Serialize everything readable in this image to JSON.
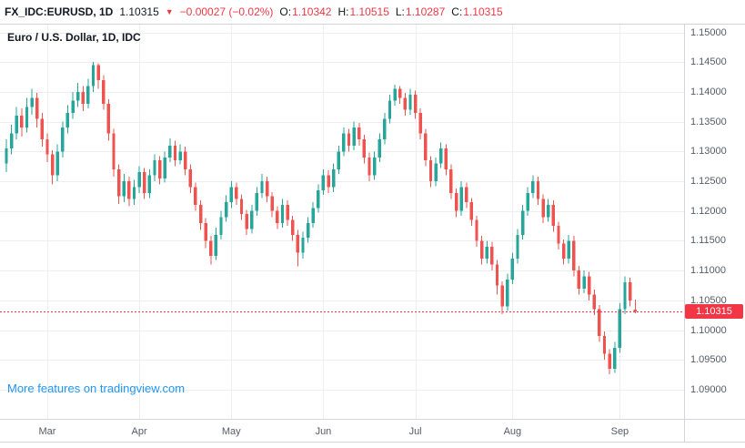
{
  "header": {
    "symbol": "FX_IDC:EURUSD, 1D",
    "last_price": "1.10315",
    "down_arrow": "▼",
    "change": "−0.00027 (−0.02%)",
    "open_label": "O:",
    "open_value": "1.10342",
    "high_label": "H:",
    "high_value": "1.10515",
    "low_label": "L:",
    "low_value": "1.10287",
    "close_label": "C:",
    "close_value": "1.10315"
  },
  "legend": "Euro / U.S. Dollar, 1D, IDC",
  "tv_link": "More features on tradingview.com",
  "price_axis": {
    "ticks": [
      "1.15000",
      "1.14500",
      "1.14000",
      "1.13500",
      "1.13000",
      "1.12500",
      "1.12000",
      "1.11500",
      "1.11000",
      "1.10500",
      "1.10000",
      "1.09500",
      "1.09000"
    ],
    "last_price_label": "1.10315"
  },
  "colors": {
    "up": "#26a69a",
    "down": "#ef5350",
    "accent_red": "#f23645",
    "link_blue": "#2196f3",
    "grid": "#eceff2",
    "axis_text": "#555b66",
    "border": "#d1d4dc"
  },
  "chart_data": {
    "type": "candlestick",
    "title": "Euro / U.S. Dollar, 1D, IDC",
    "symbol": "FX_IDC:EURUSD",
    "interval": "1D",
    "ylim": [
      1.0851,
      1.1513
    ],
    "last_close": 1.10315,
    "months": [
      {
        "label": "Mar",
        "index": 8
      },
      {
        "label": "Apr",
        "index": 26
      },
      {
        "label": "May",
        "index": 44
      },
      {
        "label": "Jun",
        "index": 62
      },
      {
        "label": "Jul",
        "index": 80
      },
      {
        "label": "Aug",
        "index": 99
      },
      {
        "label": "Sep",
        "index": 120
      }
    ],
    "candles": [
      [
        1.128,
        1.132,
        1.1265,
        1.1305
      ],
      [
        1.1305,
        1.1345,
        1.1295,
        1.133
      ],
      [
        1.133,
        1.1375,
        1.132,
        1.136
      ],
      [
        1.136,
        1.1372,
        1.1325,
        1.134
      ],
      [
        1.134,
        1.139,
        1.1332,
        1.1375
      ],
      [
        1.1375,
        1.1405,
        1.1362,
        1.139
      ],
      [
        1.139,
        1.1398,
        1.134,
        1.1355
      ],
      [
        1.1355,
        1.1365,
        1.1308,
        1.132
      ],
      [
        1.132,
        1.133,
        1.1282,
        1.1295
      ],
      [
        1.1295,
        1.1302,
        1.1245,
        1.126
      ],
      [
        1.126,
        1.1312,
        1.125,
        1.13
      ],
      [
        1.13,
        1.135,
        1.129,
        1.134
      ],
      [
        1.134,
        1.1378,
        1.133,
        1.1365
      ],
      [
        1.1365,
        1.14,
        1.1355,
        1.1385
      ],
      [
        1.1385,
        1.1415,
        1.1375,
        1.14
      ],
      [
        1.14,
        1.141,
        1.1368,
        1.138
      ],
      [
        1.138,
        1.1422,
        1.1372,
        1.141
      ],
      [
        1.141,
        1.145,
        1.14,
        1.1445
      ],
      [
        1.1445,
        1.1448,
        1.1405,
        1.142
      ],
      [
        1.142,
        1.1428,
        1.137,
        1.138
      ],
      [
        1.138,
        1.1388,
        1.1318,
        1.133
      ],
      [
        1.133,
        1.1338,
        1.1258,
        1.127
      ],
      [
        1.127,
        1.1278,
        1.1212,
        1.1225
      ],
      [
        1.1225,
        1.1262,
        1.1215,
        1.125
      ],
      [
        1.125,
        1.1258,
        1.1208,
        1.122
      ],
      [
        1.122,
        1.1252,
        1.121,
        1.124
      ],
      [
        1.124,
        1.1275,
        1.123,
        1.1265
      ],
      [
        1.1265,
        1.1272,
        1.122,
        1.123
      ],
      [
        1.123,
        1.127,
        1.1222,
        1.126
      ],
      [
        1.126,
        1.1295,
        1.125,
        1.1285
      ],
      [
        1.1285,
        1.1292,
        1.1245,
        1.1255
      ],
      [
        1.1255,
        1.13,
        1.1248,
        1.129
      ],
      [
        1.129,
        1.1322,
        1.1282,
        1.131
      ],
      [
        1.131,
        1.1318,
        1.1275,
        1.1285
      ],
      [
        1.1285,
        1.1312,
        1.1278,
        1.13
      ],
      [
        1.13,
        1.1308,
        1.126,
        1.127
      ],
      [
        1.127,
        1.1278,
        1.123,
        1.124
      ],
      [
        1.124,
        1.1248,
        1.12,
        1.121
      ],
      [
        1.121,
        1.1218,
        1.1168,
        1.118
      ],
      [
        1.118,
        1.1188,
        1.1138,
        1.115
      ],
      [
        1.115,
        1.1158,
        1.111,
        1.1125
      ],
      [
        1.1125,
        1.1172,
        1.1118,
        1.116
      ],
      [
        1.116,
        1.12,
        1.1152,
        1.119
      ],
      [
        1.119,
        1.1226,
        1.1182,
        1.1215
      ],
      [
        1.1215,
        1.125,
        1.1205,
        1.124
      ],
      [
        1.124,
        1.1248,
        1.121,
        1.122
      ],
      [
        1.122,
        1.1228,
        1.1185,
        1.1195
      ],
      [
        1.1195,
        1.1202,
        1.116,
        1.117
      ],
      [
        1.117,
        1.121,
        1.1162,
        1.12
      ],
      [
        1.12,
        1.124,
        1.1192,
        1.123
      ],
      [
        1.123,
        1.1262,
        1.1222,
        1.125
      ],
      [
        1.125,
        1.1258,
        1.1215,
        1.1225
      ],
      [
        1.1225,
        1.1232,
        1.119,
        1.12
      ],
      [
        1.12,
        1.1208,
        1.117,
        1.118
      ],
      [
        1.118,
        1.122,
        1.1172,
        1.121
      ],
      [
        1.121,
        1.1218,
        1.1175,
        1.1185
      ],
      [
        1.1185,
        1.1192,
        1.115,
        1.116
      ],
      [
        1.116,
        1.1168,
        1.1107,
        1.113
      ],
      [
        1.113,
        1.1165,
        1.112,
        1.1155
      ],
      [
        1.1155,
        1.119,
        1.1147,
        1.118
      ],
      [
        1.118,
        1.1215,
        1.1172,
        1.1205
      ],
      [
        1.1205,
        1.1245,
        1.1197,
        1.1235
      ],
      [
        1.1235,
        1.127,
        1.1227,
        1.126
      ],
      [
        1.126,
        1.1268,
        1.123,
        1.124
      ],
      [
        1.124,
        1.128,
        1.1232,
        1.127
      ],
      [
        1.127,
        1.131,
        1.1262,
        1.13
      ],
      [
        1.13,
        1.134,
        1.1292,
        1.133
      ],
      [
        1.133,
        1.1338,
        1.13,
        1.131
      ],
      [
        1.131,
        1.135,
        1.1302,
        1.134
      ],
      [
        1.134,
        1.1348,
        1.131,
        1.132
      ],
      [
        1.132,
        1.1328,
        1.128,
        1.129
      ],
      [
        1.129,
        1.1298,
        1.125,
        1.126
      ],
      [
        1.126,
        1.13,
        1.1252,
        1.129
      ],
      [
        1.129,
        1.133,
        1.1282,
        1.132
      ],
      [
        1.132,
        1.1365,
        1.1312,
        1.1355
      ],
      [
        1.1355,
        1.1395,
        1.1347,
        1.1385
      ],
      [
        1.1385,
        1.1412,
        1.1377,
        1.1405
      ],
      [
        1.1405,
        1.141,
        1.138,
        1.139
      ],
      [
        1.139,
        1.1398,
        1.136,
        1.137
      ],
      [
        1.137,
        1.1405,
        1.1362,
        1.1395
      ],
      [
        1.1395,
        1.1402,
        1.1355,
        1.1365
      ],
      [
        1.1365,
        1.1372,
        1.132,
        1.133
      ],
      [
        1.133,
        1.1338,
        1.1275,
        1.1285
      ],
      [
        1.1285,
        1.1292,
        1.124,
        1.125
      ],
      [
        1.125,
        1.129,
        1.1242,
        1.128
      ],
      [
        1.128,
        1.1315,
        1.1272,
        1.1305
      ],
      [
        1.1305,
        1.1312,
        1.126,
        1.127
      ],
      [
        1.127,
        1.1278,
        1.122,
        1.123
      ],
      [
        1.123,
        1.1238,
        1.119,
        1.12
      ],
      [
        1.12,
        1.125,
        1.1192,
        1.124
      ],
      [
        1.124,
        1.1248,
        1.1205,
        1.1215
      ],
      [
        1.1215,
        1.1222,
        1.1175,
        1.1185
      ],
      [
        1.1185,
        1.1192,
        1.114,
        1.115
      ],
      [
        1.115,
        1.1158,
        1.111,
        1.112
      ],
      [
        1.112,
        1.115,
        1.1112,
        1.114
      ],
      [
        1.114,
        1.1148,
        1.11,
        1.111
      ],
      [
        1.111,
        1.1118,
        1.106,
        1.1075
      ],
      [
        1.1075,
        1.1082,
        1.1027,
        1.104
      ],
      [
        1.104,
        1.1095,
        1.1032,
        1.1085
      ],
      [
        1.1085,
        1.113,
        1.1077,
        1.112
      ],
      [
        1.112,
        1.117,
        1.1112,
        1.116
      ],
      [
        1.116,
        1.121,
        1.1152,
        1.12
      ],
      [
        1.12,
        1.124,
        1.1192,
        1.123
      ],
      [
        1.123,
        1.126,
        1.1222,
        1.125
      ],
      [
        1.125,
        1.1258,
        1.121,
        1.122
      ],
      [
        1.122,
        1.1228,
        1.118,
        1.119
      ],
      [
        1.119,
        1.122,
        1.1182,
        1.121
      ],
      [
        1.121,
        1.1218,
        1.1165,
        1.1175
      ],
      [
        1.1175,
        1.1182,
        1.1135,
        1.1145
      ],
      [
        1.1145,
        1.1152,
        1.111,
        1.112
      ],
      [
        1.112,
        1.116,
        1.1112,
        1.115
      ],
      [
        1.115,
        1.1158,
        1.109,
        1.11
      ],
      [
        1.11,
        1.1108,
        1.106,
        1.107
      ],
      [
        1.107,
        1.11,
        1.1062,
        1.109
      ],
      [
        1.109,
        1.1098,
        1.105,
        1.106
      ],
      [
        1.106,
        1.1068,
        1.1025,
        1.1035
      ],
      [
        1.1035,
        1.1042,
        1.098,
        1.099
      ],
      [
        1.099,
        1.0998,
        1.095,
        1.096
      ],
      [
        1.096,
        1.0968,
        1.0926,
        1.0935
      ],
      [
        1.0935,
        1.098,
        1.0928,
        1.097
      ],
      [
        1.097,
        1.1045,
        1.0962,
        1.1035
      ],
      [
        1.1035,
        1.109,
        1.1027,
        1.108
      ],
      [
        1.108,
        1.1088,
        1.104,
        1.105
      ],
      [
        1.10342,
        1.10515,
        1.10287,
        1.10315
      ]
    ]
  }
}
